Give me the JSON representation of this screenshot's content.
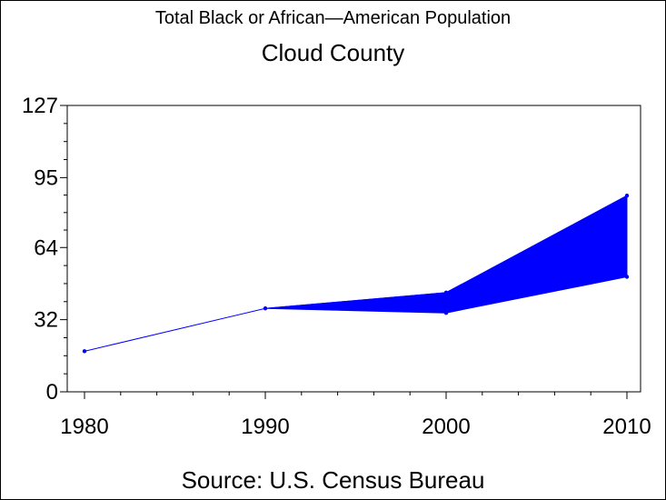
{
  "chart_data": {
    "type": "line",
    "title": "Total Black or African—American Population",
    "subtitle": "Cloud County",
    "source": "Source: U.S. Census Bureau",
    "x": [
      1980,
      1990,
      2000,
      2010
    ],
    "x_tick_labels": [
      "1980",
      "1990",
      "2000",
      "2010"
    ],
    "y_tick_labels": [
      "0",
      "32",
      "64",
      "95",
      "127"
    ],
    "ylim": [
      0,
      127
    ],
    "series": [
      {
        "values": [
          18,
          37,
          44,
          87
        ],
        "low_values": [
          18,
          37,
          35,
          51
        ]
      }
    ],
    "fill_between": [
      1990,
      2010
    ],
    "series_color": "#0000ff",
    "grid": false
  }
}
